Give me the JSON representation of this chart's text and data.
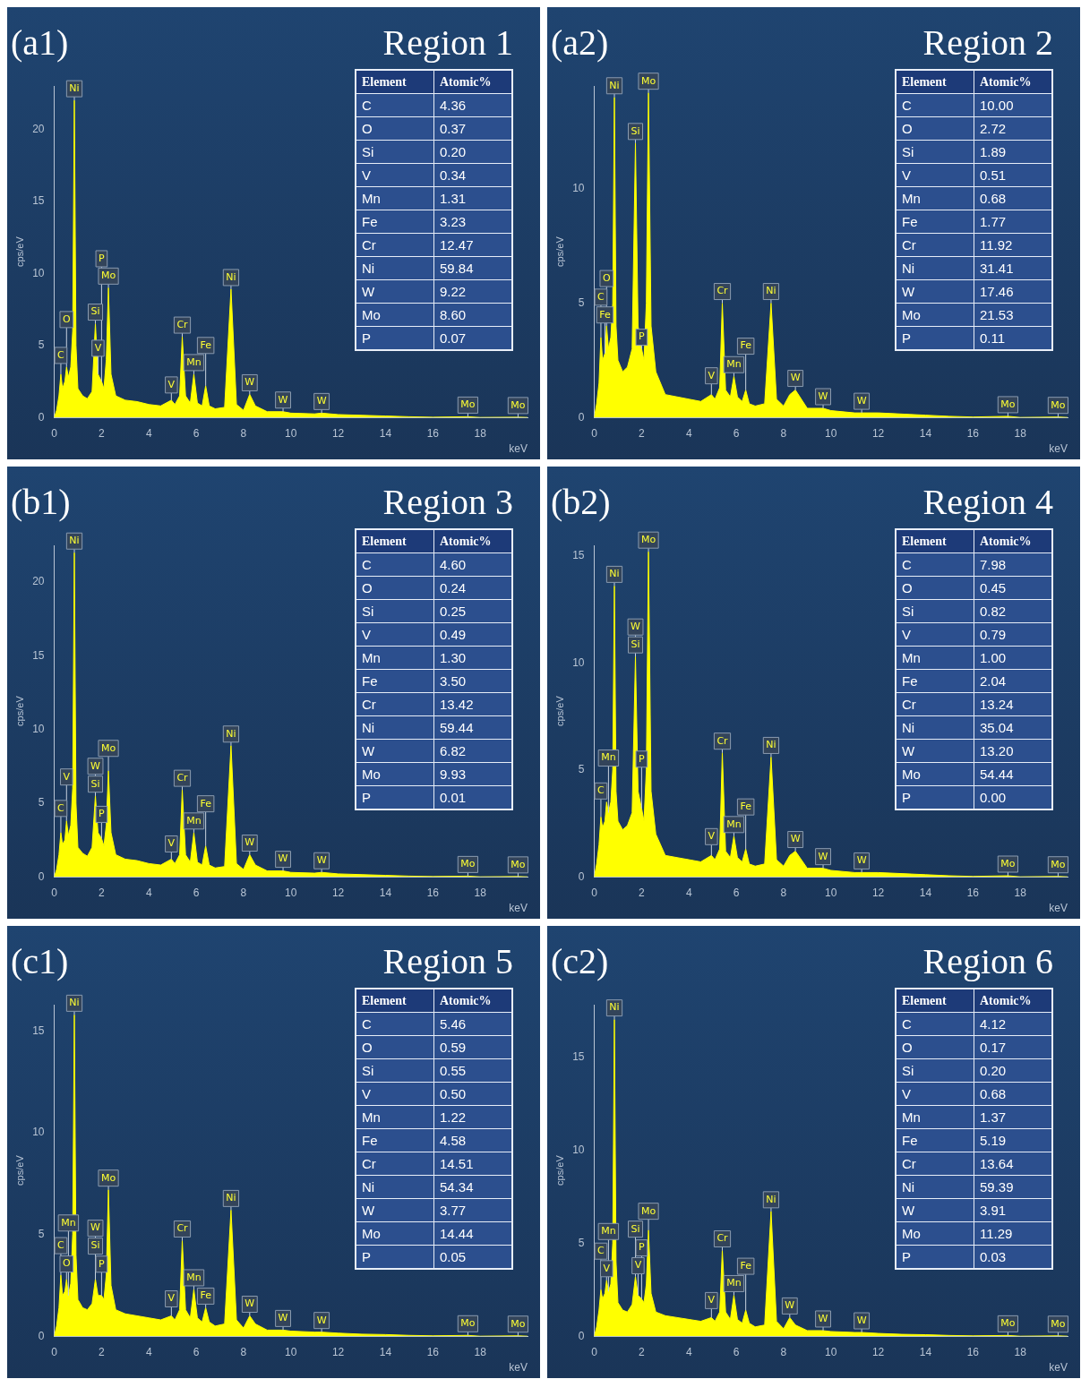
{
  "chart_data": [
    {
      "type": "area",
      "title": "(a1)",
      "xlabel": "keV",
      "ylabel": "cps/eV",
      "color": "#ffff00",
      "xlim": [
        0,
        20
      ],
      "xticks": [
        0,
        2,
        4,
        6,
        8,
        10,
        12,
        14,
        16,
        18
      ],
      "ylim": [
        0,
        23
      ],
      "yticks": [
        0,
        5,
        10,
        15,
        20
      ],
      "x": [
        0,
        0.1,
        0.2,
        0.28,
        0.35,
        0.45,
        0.52,
        0.6,
        0.7,
        0.78,
        0.85,
        0.92,
        1.0,
        1.2,
        1.4,
        1.6,
        1.74,
        1.85,
        2.0,
        2.1,
        2.2,
        2.29,
        2.4,
        2.6,
        3.0,
        3.5,
        4.0,
        4.5,
        4.95,
        5.1,
        5.3,
        5.41,
        5.55,
        5.75,
        5.9,
        6.05,
        6.25,
        6.4,
        6.55,
        6.8,
        7.2,
        7.47,
        7.7,
        8.0,
        8.26,
        8.5,
        9.0,
        9.67,
        10.0,
        11.0,
        11.3,
        12,
        13,
        14,
        15,
        16,
        17.48,
        18,
        19.6,
        20
      ],
      "values": [
        0,
        0.5,
        1.5,
        3.0,
        2.0,
        2.5,
        3.5,
        2.8,
        3.5,
        6,
        22,
        5,
        2.0,
        1.5,
        1.3,
        1.8,
        6.5,
        3.0,
        2.5,
        2.0,
        4,
        9.0,
        3,
        1.5,
        1.2,
        1.1,
        0.9,
        0.8,
        1.2,
        0.9,
        1.5,
        5.6,
        1.5,
        1.0,
        3.0,
        1.0,
        0.8,
        2.2,
        0.8,
        0.6,
        0.7,
        8.9,
        0.9,
        0.5,
        1.6,
        0.8,
        0.4,
        0.4,
        0.3,
        0.25,
        0.3,
        0.2,
        0.15,
        0.1,
        0.05,
        0.02,
        0.05,
        0,
        0.02,
        0
      ],
      "annotations": [
        {
          "text": "Ni",
          "x": 0.85,
          "y": 22
        },
        {
          "text": "C",
          "x": 0.28,
          "y": 3.0
        },
        {
          "text": "O",
          "x": 0.52,
          "y": 3.5
        },
        {
          "text": "V",
          "x": 1.85,
          "y": 3.0
        },
        {
          "text": "Si",
          "x": 1.74,
          "y": 6.5
        },
        {
          "text": "Mo",
          "x": 2.29,
          "y": 9.0
        },
        {
          "text": "P",
          "x": 2.0,
          "y": 2.5
        },
        {
          "text": "V",
          "x": 4.95,
          "y": 1.2
        },
        {
          "text": "Cr",
          "x": 5.41,
          "y": 5.6
        },
        {
          "text": "Mn",
          "x": 5.9,
          "y": 3.0
        },
        {
          "text": "Fe",
          "x": 6.4,
          "y": 2.2
        },
        {
          "text": "Ni",
          "x": 7.47,
          "y": 8.9
        },
        {
          "text": "W",
          "x": 8.26,
          "y": 1.6
        },
        {
          "text": "W",
          "x": 9.67,
          "y": 0.4
        },
        {
          "text": "W",
          "x": 11.3,
          "y": 0.3
        },
        {
          "text": "Mo",
          "x": 17.48,
          "y": 0.05
        },
        {
          "text": "Mo",
          "x": 19.6,
          "y": 0.02
        }
      ]
    },
    {
      "type": "other",
      "title": "Region 1",
      "xlabel": "Element",
      "ylabel": "Atomic%",
      "categories": [
        "C",
        "O",
        "Si",
        "V",
        "Mn",
        "Fe",
        "Cr",
        "Ni",
        "W",
        "Mo",
        "P"
      ],
      "values": [
        4.36,
        0.37,
        0.2,
        0.34,
        1.31,
        3.23,
        12.47,
        59.84,
        9.22,
        8.6,
        0.07
      ],
      "value_labels": [
        "4.36",
        "0.37",
        "0.20",
        "0.34",
        "1.31",
        "3.23",
        "12.47",
        "59.84",
        "9.22",
        "8.60",
        "0.07"
      ]
    },
    {
      "type": "area",
      "title": "(a2)",
      "xlabel": "keV",
      "ylabel": "cps/eV",
      "color": "#ffff00",
      "xlim": [
        0,
        20
      ],
      "xticks": [
        0,
        2,
        4,
        6,
        8,
        10,
        12,
        14,
        16,
        18
      ],
      "ylim": [
        0,
        14.5
      ],
      "yticks": [
        0,
        5,
        10
      ],
      "x": [
        0,
        0.1,
        0.2,
        0.28,
        0.35,
        0.45,
        0.52,
        0.6,
        0.7,
        0.78,
        0.85,
        0.92,
        1.0,
        1.2,
        1.4,
        1.6,
        1.74,
        1.85,
        2.0,
        2.1,
        2.2,
        2.29,
        2.4,
        2.6,
        3.0,
        3.5,
        4.0,
        4.5,
        4.95,
        5.1,
        5.3,
        5.41,
        5.55,
        5.75,
        5.9,
        6.05,
        6.25,
        6.4,
        6.55,
        6.8,
        7.2,
        7.47,
        7.7,
        8.0,
        8.26,
        8.5,
        9.0,
        9.67,
        10.0,
        11.0,
        11.3,
        12,
        13,
        14,
        15,
        16,
        17.48,
        18,
        19.6,
        20
      ],
      "values": [
        0,
        0.6,
        1.5,
        3.5,
        2.5,
        2.8,
        4.0,
        3.0,
        3.5,
        5,
        14,
        4,
        2.5,
        2.0,
        2.2,
        3.0,
        12,
        4,
        3.0,
        2.5,
        5,
        14.2,
        4,
        2.0,
        1.0,
        0.9,
        0.8,
        0.7,
        1.0,
        0.8,
        1.3,
        5.0,
        1.2,
        0.9,
        1.8,
        0.9,
        0.7,
        1.2,
        0.6,
        0.5,
        0.6,
        5.0,
        0.8,
        0.5,
        1.0,
        1.2,
        0.4,
        0.4,
        0.3,
        0.2,
        0.2,
        0.2,
        0.15,
        0.1,
        0.05,
        0.02,
        0.05,
        0,
        0.02,
        0
      ],
      "annotations": [
        {
          "text": "Ni",
          "x": 0.85,
          "y": 14
        },
        {
          "text": "Mo",
          "x": 2.29,
          "y": 14.2
        },
        {
          "text": "Si",
          "x": 1.74,
          "y": 12
        },
        {
          "text": "Fe",
          "x": 0.45,
          "y": 2.8
        },
        {
          "text": "C",
          "x": 0.28,
          "y": 3.5
        },
        {
          "text": "O",
          "x": 0.52,
          "y": 4.0
        },
        {
          "text": "P",
          "x": 2.0,
          "y": 3.0
        },
        {
          "text": "V",
          "x": 4.95,
          "y": 1.0
        },
        {
          "text": "Cr",
          "x": 5.41,
          "y": 5.0
        },
        {
          "text": "Mn",
          "x": 5.9,
          "y": 1.8
        },
        {
          "text": "Fe",
          "x": 6.4,
          "y": 1.2
        },
        {
          "text": "Ni",
          "x": 7.47,
          "y": 5.0
        },
        {
          "text": "W",
          "x": 8.5,
          "y": 1.2
        },
        {
          "text": "W",
          "x": 9.67,
          "y": 0.4
        },
        {
          "text": "W",
          "x": 11.3,
          "y": 0.2
        },
        {
          "text": "Mo",
          "x": 17.48,
          "y": 0.05
        },
        {
          "text": "Mo",
          "x": 19.6,
          "y": 0.02
        }
      ]
    },
    {
      "type": "other",
      "title": "Region 2",
      "xlabel": "Element",
      "ylabel": "Atomic%",
      "categories": [
        "C",
        "O",
        "Si",
        "V",
        "Mn",
        "Fe",
        "Cr",
        "Ni",
        "W",
        "Mo",
        "P"
      ],
      "values": [
        10.0,
        2.72,
        1.89,
        0.51,
        0.68,
        1.77,
        11.92,
        31.41,
        17.46,
        21.53,
        0.11
      ],
      "value_labels": [
        "10.00",
        "2.72",
        "1.89",
        "0.51",
        "0.68",
        "1.77",
        "11.92",
        "31.41",
        "17.46",
        "21.53",
        "0.11"
      ]
    },
    {
      "type": "area",
      "title": "(b1)",
      "xlabel": "keV",
      "ylabel": "cps/eV",
      "color": "#ffff00",
      "xlim": [
        0,
        20
      ],
      "xticks": [
        0,
        2,
        4,
        6,
        8,
        10,
        12,
        14,
        16,
        18
      ],
      "ylim": [
        0,
        22.5
      ],
      "yticks": [
        0,
        5,
        10,
        15,
        20
      ],
      "x": [
        0,
        0.1,
        0.2,
        0.28,
        0.35,
        0.45,
        0.52,
        0.6,
        0.7,
        0.78,
        0.85,
        0.92,
        1.0,
        1.2,
        1.4,
        1.6,
        1.74,
        1.85,
        2.0,
        2.1,
        2.2,
        2.29,
        2.4,
        2.6,
        3.0,
        3.5,
        4.0,
        4.5,
        4.95,
        5.1,
        5.3,
        5.41,
        5.55,
        5.75,
        5.9,
        6.05,
        6.25,
        6.4,
        6.55,
        6.8,
        7.2,
        7.47,
        7.7,
        8.0,
        8.26,
        8.5,
        9.0,
        9.67,
        10.0,
        11.0,
        11.3,
        12,
        13,
        14,
        15,
        16,
        17.48,
        18,
        19.6,
        20
      ],
      "values": [
        0,
        0.5,
        1.5,
        3.0,
        2.2,
        2.5,
        3.8,
        2.8,
        3.5,
        6,
        22,
        5,
        2.0,
        1.6,
        1.4,
        2.0,
        5.5,
        3.0,
        2.6,
        2.1,
        3.5,
        7.2,
        3.0,
        1.5,
        1.2,
        1.1,
        0.9,
        0.8,
        1.2,
        0.9,
        1.5,
        5.9,
        1.5,
        1.0,
        3.0,
        1.0,
        0.8,
        2.1,
        0.8,
        0.6,
        0.7,
        8.9,
        0.9,
        0.5,
        1.5,
        0.8,
        0.4,
        0.4,
        0.3,
        0.25,
        0.3,
        0.2,
        0.15,
        0.1,
        0.05,
        0.02,
        0.05,
        0,
        0.02,
        0
      ],
      "annotations": [
        {
          "text": "Ni",
          "x": 0.85,
          "y": 22
        },
        {
          "text": "C",
          "x": 0.28,
          "y": 3.0
        },
        {
          "text": "V",
          "x": 0.52,
          "y": 3.8
        },
        {
          "text": "Si",
          "x": 1.74,
          "y": 5.5
        },
        {
          "text": "W",
          "x": 1.74,
          "y": 5.5
        },
        {
          "text": "Mo",
          "x": 2.29,
          "y": 7.2
        },
        {
          "text": "P",
          "x": 2.0,
          "y": 2.6
        },
        {
          "text": "V",
          "x": 4.95,
          "y": 1.2
        },
        {
          "text": "Cr",
          "x": 5.41,
          "y": 5.9
        },
        {
          "text": "Mn",
          "x": 5.9,
          "y": 3.0
        },
        {
          "text": "Fe",
          "x": 6.4,
          "y": 2.1
        },
        {
          "text": "Ni",
          "x": 7.47,
          "y": 8.9
        },
        {
          "text": "W",
          "x": 8.26,
          "y": 1.5
        },
        {
          "text": "W",
          "x": 9.67,
          "y": 0.4
        },
        {
          "text": "W",
          "x": 11.3,
          "y": 0.3
        },
        {
          "text": "Mo",
          "x": 17.48,
          "y": 0.05
        },
        {
          "text": "Mo",
          "x": 19.6,
          "y": 0.02
        }
      ]
    },
    {
      "type": "other",
      "title": "Region 3",
      "xlabel": "Element",
      "ylabel": "Atomic%",
      "categories": [
        "C",
        "O",
        "Si",
        "V",
        "Mn",
        "Fe",
        "Cr",
        "Ni",
        "W",
        "Mo",
        "P"
      ],
      "values": [
        4.6,
        0.24,
        0.25,
        0.49,
        1.3,
        3.5,
        13.42,
        59.44,
        6.82,
        9.93,
        0.01
      ],
      "value_labels": [
        "4.60",
        "0.24",
        "0.25",
        "0.49",
        "1.30",
        "3.50",
        "13.42",
        "59.44",
        "6.82",
        "9.93",
        "0.01"
      ]
    },
    {
      "type": "area",
      "title": "(b2)",
      "xlabel": "keV",
      "ylabel": "cps/eV",
      "color": "#ffff00",
      "xlim": [
        0,
        20
      ],
      "xticks": [
        0,
        2,
        4,
        6,
        8,
        10,
        12,
        14,
        16,
        18
      ],
      "ylim": [
        0,
        15.5
      ],
      "yticks": [
        0,
        5,
        10,
        15
      ],
      "x": [
        0,
        0.1,
        0.2,
        0.28,
        0.35,
        0.45,
        0.52,
        0.6,
        0.7,
        0.78,
        0.85,
        0.92,
        1.0,
        1.2,
        1.4,
        1.6,
        1.74,
        1.85,
        2.0,
        2.1,
        2.2,
        2.29,
        2.4,
        2.6,
        3.0,
        3.5,
        4.0,
        4.5,
        4.95,
        5.1,
        5.3,
        5.41,
        5.55,
        5.75,
        5.9,
        6.05,
        6.25,
        6.4,
        6.55,
        6.8,
        7.2,
        7.47,
        7.7,
        8.0,
        8.26,
        8.5,
        9.0,
        9.67,
        10.0,
        11.0,
        11.3,
        12,
        13,
        14,
        15,
        16,
        17.48,
        18,
        19.6,
        20
      ],
      "values": [
        0,
        0.6,
        1.5,
        2.8,
        2.3,
        2.6,
        3.5,
        3.0,
        3.5,
        5,
        13.6,
        4,
        2.6,
        2.2,
        2.4,
        3.0,
        10.3,
        4,
        3.2,
        2.6,
        5,
        15.2,
        4,
        2.0,
        1.0,
        0.9,
        0.8,
        0.7,
        1.0,
        0.8,
        1.3,
        5.8,
        1.2,
        0.9,
        1.9,
        0.9,
        0.7,
        1.3,
        0.6,
        0.5,
        0.6,
        5.6,
        0.8,
        0.5,
        1.0,
        1.2,
        0.4,
        0.4,
        0.3,
        0.2,
        0.2,
        0.2,
        0.15,
        0.1,
        0.05,
        0.02,
        0.05,
        0,
        0.02,
        0
      ],
      "annotations": [
        {
          "text": "Ni",
          "x": 0.85,
          "y": 13.6
        },
        {
          "text": "Mo",
          "x": 2.29,
          "y": 15.2
        },
        {
          "text": "Si",
          "x": 1.74,
          "y": 10.3
        },
        {
          "text": "W",
          "x": 1.74,
          "y": 10.3
        },
        {
          "text": "C",
          "x": 0.28,
          "y": 2.8
        },
        {
          "text": "Mn",
          "x": 0.6,
          "y": 3.0
        },
        {
          "text": "P",
          "x": 2.0,
          "y": 3.2
        },
        {
          "text": "V",
          "x": 4.95,
          "y": 1.0
        },
        {
          "text": "Cr",
          "x": 5.41,
          "y": 5.8
        },
        {
          "text": "Mn",
          "x": 5.9,
          "y": 1.9
        },
        {
          "text": "Fe",
          "x": 6.4,
          "y": 1.3
        },
        {
          "text": "Ni",
          "x": 7.47,
          "y": 5.6
        },
        {
          "text": "W",
          "x": 8.5,
          "y": 1.2
        },
        {
          "text": "W",
          "x": 9.67,
          "y": 0.4
        },
        {
          "text": "W",
          "x": 11.3,
          "y": 0.2
        },
        {
          "text": "Mo",
          "x": 17.48,
          "y": 0.05
        },
        {
          "text": "Mo",
          "x": 19.6,
          "y": 0.02
        }
      ]
    },
    {
      "type": "other",
      "title": "Region 4",
      "xlabel": "Element",
      "ylabel": "Atomic%",
      "categories": [
        "C",
        "O",
        "Si",
        "V",
        "Mn",
        "Fe",
        "Cr",
        "Ni",
        "W",
        "Mo",
        "P"
      ],
      "values": [
        7.98,
        0.45,
        0.82,
        0.79,
        1.0,
        2.04,
        13.24,
        35.04,
        13.2,
        54.44,
        0.0
      ],
      "value_labels": [
        "7.98",
        "0.45",
        "0.82",
        "0.79",
        "1.00",
        "2.04",
        "13.24",
        "35.04",
        "13.20",
        "54.44",
        "0.00"
      ]
    },
    {
      "type": "area",
      "title": "(c1)",
      "xlabel": "keV",
      "ylabel": "cps/eV",
      "color": "#ffff00",
      "xlim": [
        0,
        20
      ],
      "xticks": [
        0,
        2,
        4,
        6,
        8,
        10,
        12,
        14,
        16,
        18
      ],
      "ylim": [
        0,
        16.3
      ],
      "yticks": [
        0,
        5,
        10,
        15
      ],
      "x": [
        0,
        0.1,
        0.2,
        0.28,
        0.35,
        0.45,
        0.52,
        0.6,
        0.7,
        0.78,
        0.85,
        0.92,
        1.0,
        1.2,
        1.4,
        1.6,
        1.74,
        1.85,
        2.0,
        2.1,
        2.2,
        2.29,
        2.4,
        2.6,
        3.0,
        3.5,
        4.0,
        4.5,
        4.95,
        5.1,
        5.3,
        5.41,
        5.55,
        5.75,
        5.9,
        6.05,
        6.25,
        6.4,
        6.55,
        6.8,
        7.2,
        7.47,
        7.7,
        8.0,
        8.26,
        8.5,
        9.0,
        9.67,
        10.0,
        11.0,
        11.3,
        12,
        13,
        14,
        15,
        16,
        17.48,
        18,
        19.6,
        20
      ],
      "values": [
        0,
        0.5,
        1.4,
        3.0,
        2.0,
        2.2,
        2.8,
        2.0,
        2.6,
        5,
        15.8,
        4,
        1.8,
        1.4,
        1.3,
        1.6,
        2.8,
        2.0,
        2.0,
        1.8,
        3,
        7.2,
        2.5,
        1.3,
        1.1,
        1.0,
        0.9,
        0.8,
        1.0,
        0.8,
        1.3,
        4.7,
        1.3,
        0.9,
        2.3,
        0.9,
        0.7,
        1.4,
        0.7,
        0.5,
        0.6,
        6.2,
        0.8,
        0.4,
        1.0,
        0.6,
        0.3,
        0.3,
        0.25,
        0.2,
        0.2,
        0.15,
        0.1,
        0.08,
        0.04,
        0.02,
        0.04,
        0,
        0.02,
        0
      ],
      "annotations": [
        {
          "text": "Ni",
          "x": 0.85,
          "y": 15.8
        },
        {
          "text": "Mn",
          "x": 0.6,
          "y": 2.0
        },
        {
          "text": "O",
          "x": 0.52,
          "y": 2.8
        },
        {
          "text": "C",
          "x": 0.28,
          "y": 3.0
        },
        {
          "text": "P",
          "x": 2.0,
          "y": 2.0
        },
        {
          "text": "Si",
          "x": 1.74,
          "y": 2.8
        },
        {
          "text": "W",
          "x": 1.74,
          "y": 2.8
        },
        {
          "text": "Mo",
          "x": 2.29,
          "y": 7.2
        },
        {
          "text": "V",
          "x": 4.95,
          "y": 1.0
        },
        {
          "text": "Cr",
          "x": 5.41,
          "y": 4.7
        },
        {
          "text": "Mn",
          "x": 5.9,
          "y": 2.3
        },
        {
          "text": "Fe",
          "x": 6.4,
          "y": 1.4
        },
        {
          "text": "Ni",
          "x": 7.47,
          "y": 6.2
        },
        {
          "text": "W",
          "x": 8.26,
          "y": 1.0
        },
        {
          "text": "W",
          "x": 9.67,
          "y": 0.3
        },
        {
          "text": "W",
          "x": 11.3,
          "y": 0.2
        },
        {
          "text": "Mo",
          "x": 17.48,
          "y": 0.04
        },
        {
          "text": "Mo",
          "x": 19.6,
          "y": 0.02
        }
      ]
    },
    {
      "type": "other",
      "title": "Region 5",
      "xlabel": "Element",
      "ylabel": "Atomic%",
      "categories": [
        "C",
        "O",
        "Si",
        "V",
        "Mn",
        "Fe",
        "Cr",
        "Ni",
        "W",
        "Mo",
        "P"
      ],
      "values": [
        5.46,
        0.59,
        0.55,
        0.5,
        1.22,
        4.58,
        14.51,
        54.34,
        3.77,
        14.44,
        0.05
      ],
      "value_labels": [
        "5.46",
        "0.59",
        "0.55",
        "0.50",
        "1.22",
        "4.58",
        "14.51",
        "54.34",
        "3.77",
        "14.44",
        "0.05"
      ]
    },
    {
      "type": "area",
      "title": "(c2)",
      "xlabel": "keV",
      "ylabel": "cps/eV",
      "color": "#ffff00",
      "xlim": [
        0,
        20
      ],
      "xticks": [
        0,
        2,
        4,
        6,
        8,
        10,
        12,
        14,
        16,
        18
      ],
      "ylim": [
        0,
        17.8
      ],
      "yticks": [
        0,
        5,
        10,
        15
      ],
      "x": [
        0,
        0.1,
        0.2,
        0.28,
        0.35,
        0.45,
        0.52,
        0.6,
        0.7,
        0.78,
        0.85,
        0.92,
        1.0,
        1.2,
        1.4,
        1.6,
        1.74,
        1.85,
        2.0,
        2.1,
        2.2,
        2.29,
        2.4,
        2.6,
        3.0,
        3.5,
        4.0,
        4.5,
        4.95,
        5.1,
        5.3,
        5.41,
        5.55,
        5.75,
        5.9,
        6.05,
        6.25,
        6.4,
        6.55,
        6.8,
        7.2,
        7.47,
        7.7,
        8.0,
        8.26,
        8.5,
        9.0,
        9.67,
        10.0,
        11.0,
        11.3,
        12,
        13,
        14,
        15,
        16,
        17.48,
        18,
        19.6,
        20
      ],
      "values": [
        0,
        0.5,
        1.4,
        2.5,
        2.0,
        2.3,
        3.0,
        2.4,
        2.8,
        5,
        17,
        4,
        1.8,
        1.4,
        1.3,
        1.7,
        3.2,
        2.2,
        2.0,
        1.8,
        2.8,
        5.7,
        2.3,
        1.3,
        1.1,
        1.0,
        0.9,
        0.8,
        1.0,
        0.8,
        1.3,
        4.6,
        1.3,
        0.9,
        2.2,
        0.9,
        0.7,
        1.4,
        0.7,
        0.5,
        0.6,
        6.7,
        0.8,
        0.4,
        1.0,
        0.6,
        0.3,
        0.3,
        0.25,
        0.2,
        0.2,
        0.15,
        0.1,
        0.08,
        0.04,
        0.02,
        0.04,
        0,
        0.02,
        0
      ],
      "annotations": [
        {
          "text": "Ni",
          "x": 0.85,
          "y": 17
        },
        {
          "text": "V",
          "x": 0.52,
          "y": 3.0
        },
        {
          "text": "C",
          "x": 0.28,
          "y": 2.5
        },
        {
          "text": "Mn",
          "x": 0.6,
          "y": 2.4
        },
        {
          "text": "V",
          "x": 1.85,
          "y": 2.2
        },
        {
          "text": "P",
          "x": 2.0,
          "y": 2.0
        },
        {
          "text": "Si",
          "x": 1.74,
          "y": 3.2
        },
        {
          "text": "Mo",
          "x": 2.29,
          "y": 5.7
        },
        {
          "text": "V",
          "x": 4.95,
          "y": 1.0
        },
        {
          "text": "Cr",
          "x": 5.41,
          "y": 4.6
        },
        {
          "text": "Mn",
          "x": 5.9,
          "y": 2.2
        },
        {
          "text": "Fe",
          "x": 6.4,
          "y": 1.4
        },
        {
          "text": "Ni",
          "x": 7.47,
          "y": 6.7
        },
        {
          "text": "W",
          "x": 8.26,
          "y": 1.0
        },
        {
          "text": "W",
          "x": 9.67,
          "y": 0.3
        },
        {
          "text": "W",
          "x": 11.3,
          "y": 0.2
        },
        {
          "text": "Mo",
          "x": 17.48,
          "y": 0.04
        },
        {
          "text": "Mo",
          "x": 19.6,
          "y": 0.02
        }
      ]
    },
    {
      "type": "other",
      "title": "Region 6",
      "xlabel": "Element",
      "ylabel": "Atomic%",
      "categories": [
        "C",
        "O",
        "Si",
        "V",
        "Mn",
        "Fe",
        "Cr",
        "Ni",
        "W",
        "Mo",
        "P"
      ],
      "values": [
        4.12,
        0.17,
        0.2,
        0.68,
        1.37,
        5.19,
        13.64,
        59.39,
        3.91,
        11.29,
        0.03
      ],
      "value_labels": [
        "4.12",
        "0.17",
        "0.20",
        "0.68",
        "1.37",
        "5.19",
        "13.64",
        "59.39",
        "3.91",
        "11.29",
        "0.03"
      ]
    }
  ]
}
